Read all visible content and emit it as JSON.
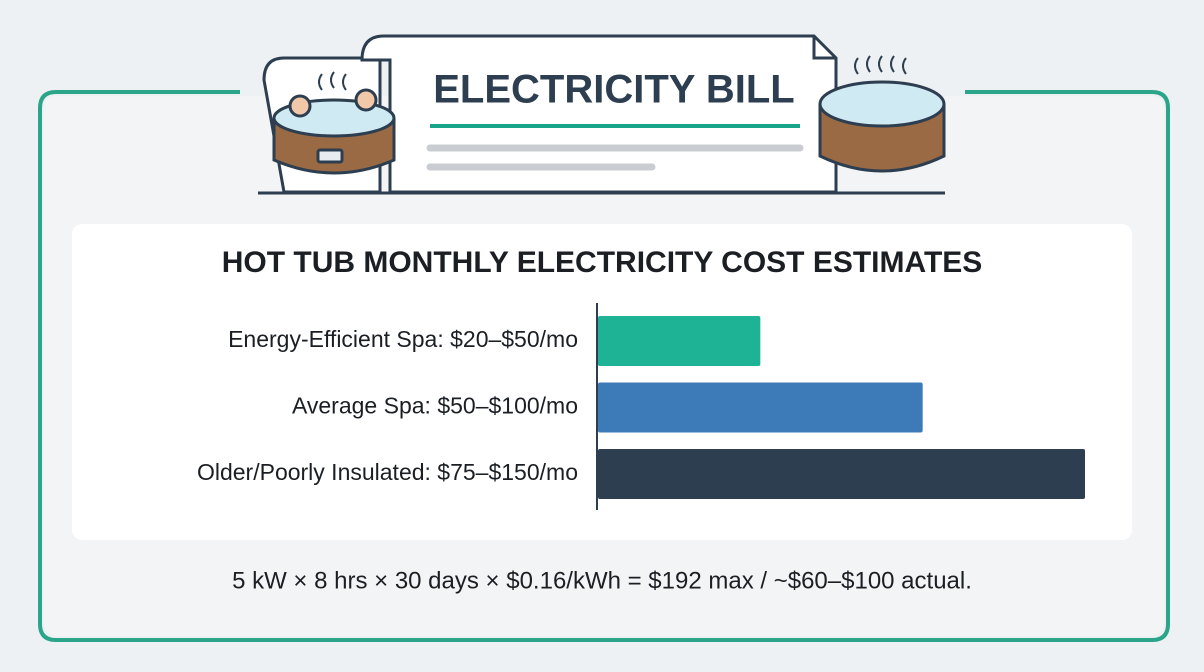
{
  "chart_data": {
    "type": "bar",
    "orientation": "horizontal",
    "header": "ELECTRICITY BILL",
    "title": "HOT TUB MONTHLY ELECTRICITY COST ESTIMATES",
    "categories": [
      "Energy-Efficient Spa: $20–$50/mo",
      "Average Spa: $50–$100/mo",
      "Older/Poorly Insulated: $75–$150/mo"
    ],
    "values": [
      50,
      100,
      150
    ],
    "colors": [
      "#1db394",
      "#3d7ab8",
      "#2c3e50"
    ],
    "xlim": [
      0,
      150
    ],
    "note": "5 kW × 8 hrs × 30 days × $0.16/kWh = $192 max / ~$60–$100 actual."
  }
}
